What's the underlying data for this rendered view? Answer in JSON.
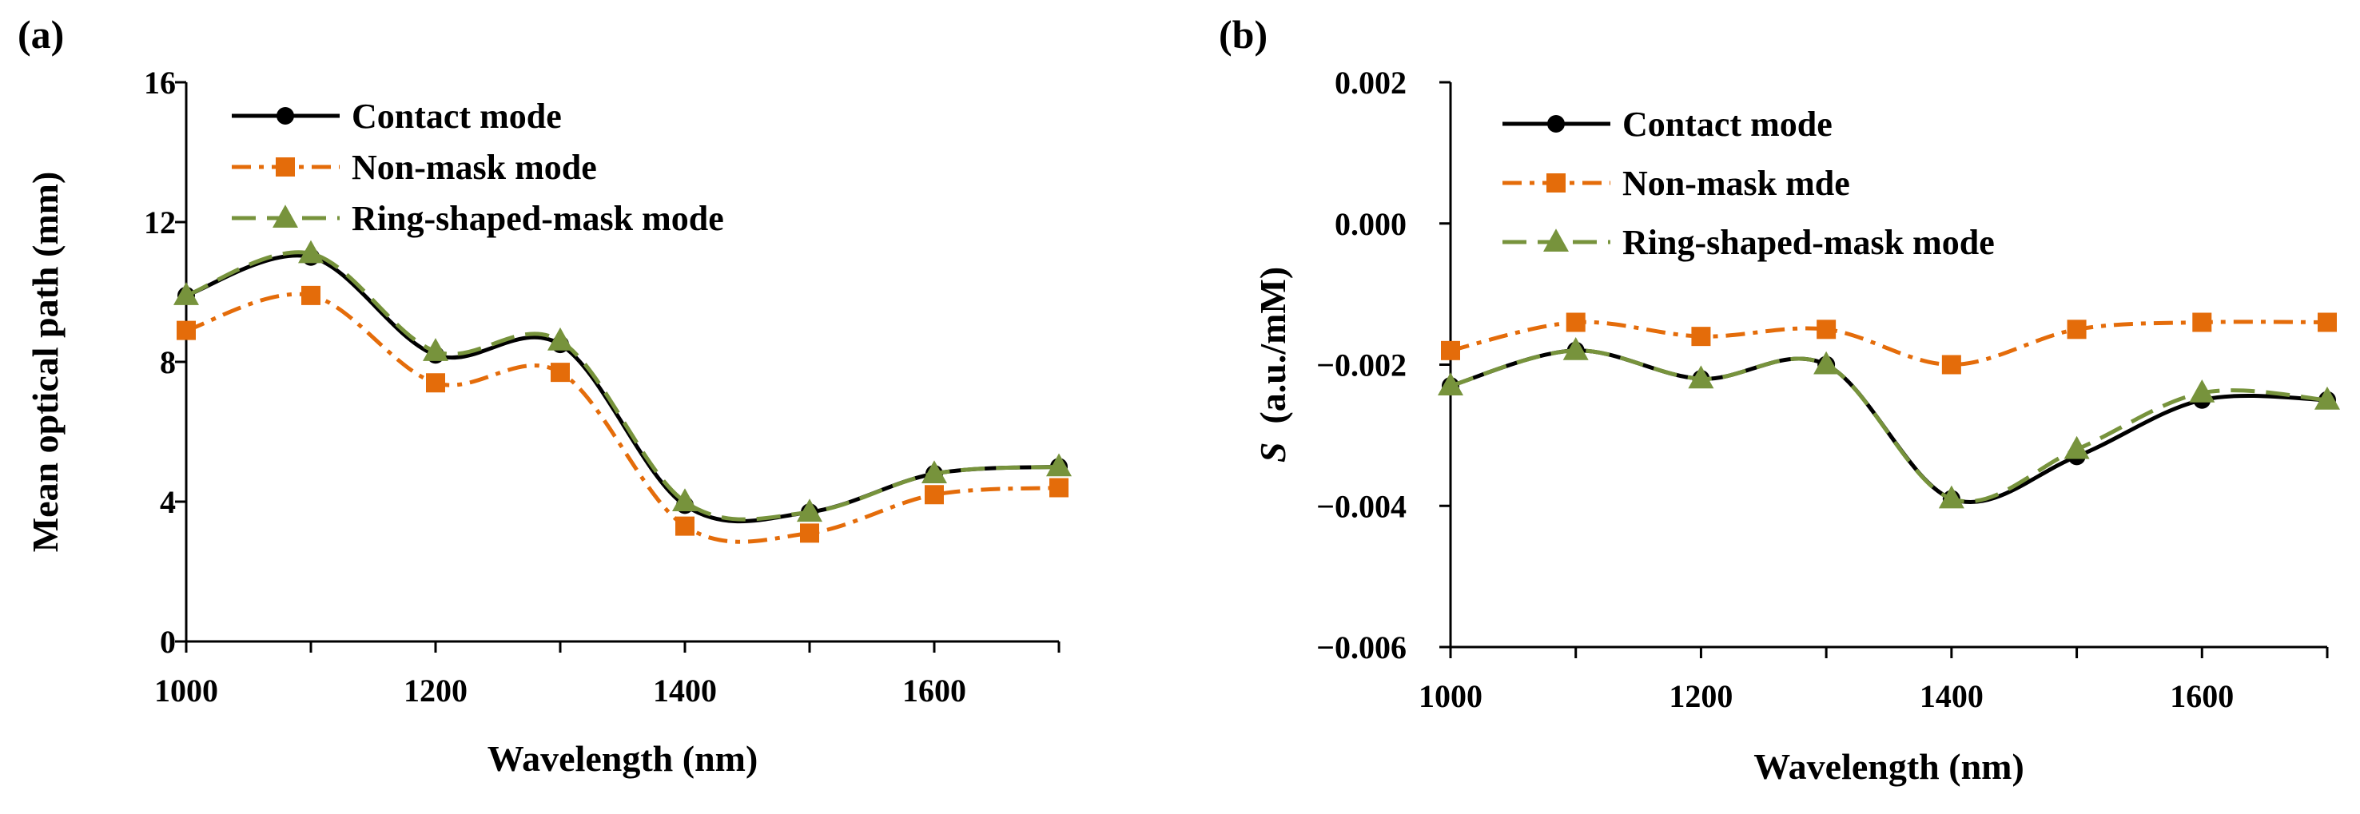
{
  "chart_data": [
    {
      "panel_label": "(a)",
      "type": "line",
      "title": "",
      "xlabel": "Wavelength (nm)",
      "ylabel": "Mean optical path (mm)",
      "ylabel_italic_prefix": "",
      "x": [
        1000,
        1100,
        1200,
        1300,
        1400,
        1500,
        1600,
        1700
      ],
      "xlim": [
        1000,
        1700
      ],
      "ylim": [
        0,
        16
      ],
      "xticks": [
        1000,
        1200,
        1400,
        1600
      ],
      "xtick_labels": [
        "1000",
        "1200",
        "1400",
        "1600"
      ],
      "yticks": [
        0,
        4,
        8,
        12,
        16
      ],
      "ytick_labels": [
        "0",
        "4",
        "8",
        "12",
        "16"
      ],
      "grid": false,
      "legend_position": "top-left",
      "series": [
        {
          "name": "Contact mode",
          "values": [
            9.9,
            11.0,
            8.2,
            8.5,
            3.9,
            3.7,
            4.8,
            5.0
          ],
          "color": "#000000",
          "marker": "circle",
          "dash": "solid"
        },
        {
          "name": "Non-mask mode",
          "values": [
            8.9,
            9.9,
            7.4,
            7.7,
            3.3,
            3.1,
            4.2,
            4.4
          ],
          "color": "#E46C0A",
          "marker": "square",
          "dash": "dashdot"
        },
        {
          "name": "Ring-shaped-mask mode",
          "values": [
            9.9,
            11.1,
            8.3,
            8.6,
            4.0,
            3.7,
            4.8,
            5.0
          ],
          "color": "#77933C",
          "marker": "triangle",
          "dash": "dash"
        }
      ]
    },
    {
      "panel_label": "(b)",
      "type": "line",
      "title": "",
      "xlabel": "Wavelength (nm)",
      "ylabel": "(a.u./mM)",
      "ylabel_italic_prefix": "S",
      "x": [
        1000,
        1100,
        1200,
        1300,
        1400,
        1500,
        1600,
        1700
      ],
      "xlim": [
        1000,
        1700
      ],
      "ylim": [
        -0.006,
        0.002
      ],
      "xticks": [
        1000,
        1200,
        1400,
        1600
      ],
      "xtick_labels": [
        "1000",
        "1200",
        "1400",
        "1600"
      ],
      "yticks": [
        -0.006,
        -0.004,
        -0.002,
        0.0,
        0.002
      ],
      "ytick_labels": [
        "−0.006",
        "−0.004",
        "−0.002",
        "0.000",
        "0.002"
      ],
      "grid": false,
      "legend_position": "top-left",
      "series": [
        {
          "name": "Contact mode",
          "values": [
            -0.0023,
            -0.0018,
            -0.0022,
            -0.002,
            -0.0039,
            -0.0033,
            -0.0025,
            -0.0025
          ],
          "color": "#000000",
          "marker": "circle",
          "dash": "solid"
        },
        {
          "name": "Non-mask mde",
          "values": [
            -0.0018,
            -0.0014,
            -0.0016,
            -0.0015,
            -0.002,
            -0.0015,
            -0.0014,
            -0.0014
          ],
          "color": "#E46C0A",
          "marker": "square",
          "dash": "dashdot"
        },
        {
          "name": "Ring-shaped-mask mode",
          "values": [
            -0.0023,
            -0.0018,
            -0.0022,
            -0.002,
            -0.0039,
            -0.0032,
            -0.0024,
            -0.0025
          ],
          "color": "#77933C",
          "marker": "triangle",
          "dash": "dash"
        }
      ]
    }
  ]
}
